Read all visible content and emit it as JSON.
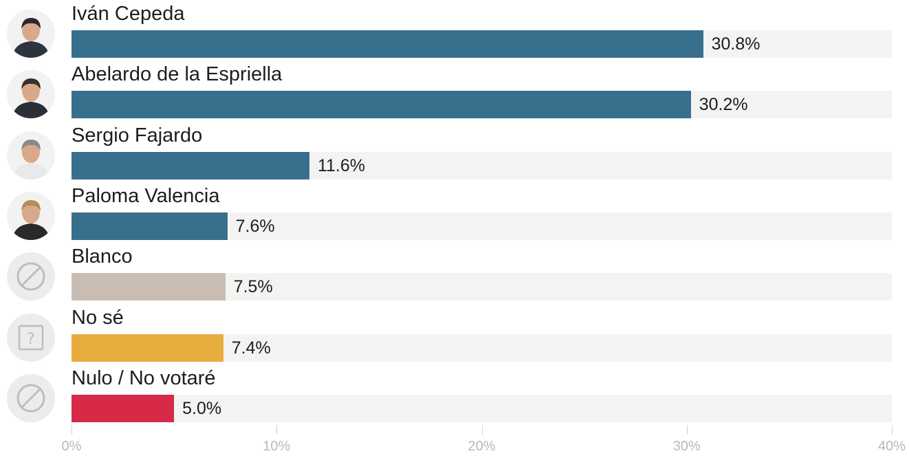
{
  "chart_data": {
    "type": "bar",
    "orientation": "horizontal",
    "categories": [
      "Iván Cepeda",
      "Abelardo de la Espriella",
      "Sergio Fajardo",
      "Paloma Valencia",
      "Blanco",
      "No sé",
      "Nulo / No votaré"
    ],
    "values": [
      30.8,
      30.2,
      11.6,
      7.6,
      7.5,
      7.4,
      5.0
    ],
    "value_labels": [
      "30.8%",
      "30.2%",
      "11.6%",
      "7.6%",
      "7.5%",
      "7.4%",
      "5.0%"
    ],
    "colors": [
      "#386f8c",
      "#386f8c",
      "#386f8c",
      "#386f8c",
      "#c9bcb3",
      "#e6ad3e",
      "#d62a48"
    ],
    "icons": [
      "candidate-photo",
      "candidate-photo",
      "candidate-photo",
      "candidate-photo",
      "blocked-icon",
      "question-icon",
      "blocked-icon"
    ],
    "xlim": [
      0,
      40
    ],
    "x_ticks": [
      0,
      10,
      20,
      30,
      40
    ],
    "x_tick_labels": [
      "0%",
      "10%",
      "20%",
      "30%",
      "40%"
    ],
    "grid": false,
    "track_color": "#f3f3f2"
  }
}
